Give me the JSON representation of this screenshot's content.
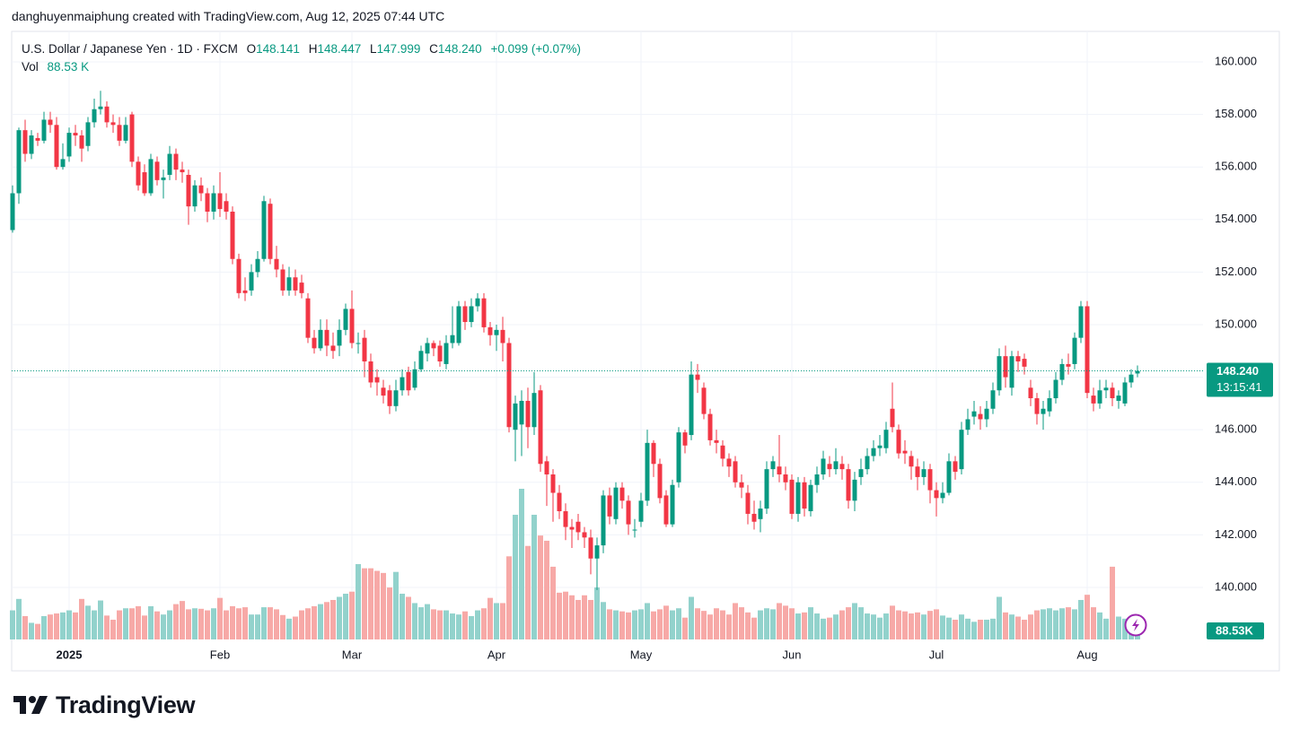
{
  "header": {
    "caption": "danghuyenmaiphung created with TradingView.com, Aug 12, 2025 07:44 UTC"
  },
  "legend": {
    "symbol": "U.S. Dollar / Japanese Yen · 1D · FXCM",
    "open_label": "O",
    "open": "148.141",
    "high_label": "H",
    "high": "148.447",
    "low_label": "L",
    "low": "147.999",
    "close_label": "C",
    "close": "148.240",
    "change": "+0.099 (+0.07%)",
    "volume_label": "Vol",
    "volume": "88.53 K"
  },
  "chart_data": {
    "type": "candlestick",
    "categories": [
      null,
      null,
      null,
      null,
      null,
      null,
      null,
      null,
      null,
      "2025",
      null,
      null,
      null,
      null,
      null,
      null,
      null,
      null,
      null,
      null,
      null,
      null,
      null,
      null,
      null,
      null,
      null,
      null,
      null,
      null,
      null,
      null,
      null,
      "Feb",
      null,
      null,
      null,
      null,
      null,
      null,
      null,
      null,
      null,
      null,
      null,
      null,
      null,
      null,
      null,
      null,
      null,
      null,
      null,
      null,
      "Mar",
      null,
      null,
      null,
      null,
      null,
      null,
      null,
      null,
      null,
      null,
      null,
      null,
      null,
      null,
      null,
      null,
      null,
      null,
      null,
      null,
      null,
      null,
      "Apr",
      null,
      null,
      null,
      null,
      null,
      null,
      null,
      null,
      null,
      null,
      null,
      null,
      null,
      null,
      null,
      null,
      null,
      null,
      null,
      null,
      null,
      null,
      "May",
      null,
      null,
      null,
      null,
      null,
      null,
      null,
      null,
      null,
      null,
      null,
      null,
      null,
      null,
      null,
      null,
      null,
      null,
      null,
      null,
      null,
      null,
      null,
      "Jun",
      null,
      null,
      null,
      null,
      null,
      null,
      null,
      null,
      null,
      null,
      null,
      null,
      null,
      null,
      null,
      null,
      null,
      null,
      null,
      null,
      null,
      null,
      "Jul",
      null,
      null,
      null,
      null,
      null,
      null,
      null,
      null,
      null,
      null,
      null,
      null,
      null,
      null,
      null,
      null,
      null,
      null,
      null,
      null,
      null,
      null,
      null,
      "Aug",
      null,
      null,
      null,
      null,
      null,
      null,
      null,
      null
    ],
    "open": [
      153.6,
      155.0,
      157.4,
      156.5,
      157.1,
      157.0,
      157.8,
      157.6,
      156.0,
      156.4,
      157.3,
      157.2,
      156.8,
      157.7,
      158.2,
      158.3,
      157.7,
      157.6,
      157.0,
      158.0,
      156.2,
      155.8,
      155.0,
      156.2,
      155.5,
      155.7,
      156.5,
      155.9,
      155.7,
      154.5,
      155.3,
      155.0,
      154.3,
      155.0,
      154.7,
      154.3,
      152.5,
      151.3,
      151.3,
      152.0,
      152.5,
      154.6,
      152.5,
      152.1,
      151.3,
      151.8,
      151.6,
      151.0,
      149.5,
      149.1,
      149.8,
      149.2,
      149.2,
      149.8,
      150.6,
      149.3,
      149.5,
      148.6,
      148.0,
      147.6,
      147.5,
      146.9,
      147.5,
      148.2,
      147.6,
      148.3,
      148.9,
      149.3,
      149.2,
      148.5,
      149.3,
      149.3,
      150.7,
      150.1,
      150.7,
      151.0,
      149.9,
      149.6,
      149.8,
      149.3,
      146.0,
      146.2,
      147.1,
      146.1,
      147.5,
      144.8,
      144.3,
      143.6,
      142.9,
      142.3,
      142.5,
      142.1,
      141.9,
      141.1,
      141.6,
      143.5,
      142.6,
      143.8,
      143.3,
      142.2,
      142.5,
      143.3,
      145.5,
      144.7,
      143.5,
      142.4,
      144.0,
      145.9,
      145.8,
      148.1,
      147.6,
      146.6,
      145.6,
      145.4,
      144.9,
      144.8,
      144.0,
      143.6,
      142.8,
      142.6,
      143.0,
      144.5,
      144.6,
      144.3,
      144.1,
      142.8,
      144.0,
      142.9,
      143.9,
      144.3,
      144.7,
      144.5,
      144.7,
      144.5,
      143.3,
      144.2,
      144.5,
      145.0,
      145.3,
      145.3,
      146.8,
      146.0,
      145.2,
      145.0,
      144.6,
      144.2,
      144.5,
      143.7,
      143.4,
      143.6,
      144.8,
      144.5,
      146.0,
      146.5,
      146.6,
      146.4,
      146.8,
      147.5,
      148.8,
      147.6,
      148.8,
      148.7,
      147.6,
      147.2,
      146.6,
      146.7,
      147.2,
      147.9,
      148.5,
      148.5,
      149.5,
      150.7,
      147.3,
      147.0,
      147.5,
      147.6,
      147.1,
      147.0,
      147.8,
      148.141
    ],
    "high": [
      155.3,
      157.5,
      157.8,
      157.4,
      157.3,
      158.1,
      158.1,
      157.9,
      156.9,
      157.5,
      157.6,
      157.4,
      157.9,
      158.6,
      158.9,
      158.5,
      158.0,
      157.9,
      157.9,
      158.1,
      156.4,
      156.1,
      156.5,
      156.4,
      155.9,
      156.8,
      156.7,
      156.2,
      155.9,
      155.5,
      155.6,
      155.2,
      155.3,
      155.8,
      155.0,
      154.5,
      152.7,
      151.8,
      152.3,
      152.8,
      154.9,
      154.8,
      153.0,
      152.3,
      152.2,
      152.1,
      151.9,
      151.2,
      149.8,
      150.2,
      150.2,
      149.7,
      150.2,
      150.8,
      151.3,
      149.7,
      149.8,
      148.9,
      148.3,
      147.9,
      147.7,
      147.9,
      148.3,
      148.4,
      148.6,
      149.2,
      149.5,
      149.4,
      149.4,
      149.6,
      150.7,
      150.9,
      150.9,
      151.0,
      151.2,
      151.2,
      150.1,
      150.0,
      150.3,
      149.5,
      147.3,
      147.5,
      147.6,
      148.2,
      147.7,
      145.0,
      144.5,
      143.9,
      143.2,
      142.6,
      142.8,
      142.3,
      142.2,
      141.9,
      143.7,
      143.8,
      144.0,
      144.0,
      143.5,
      142.6,
      143.6,
      146.0,
      145.6,
      144.9,
      143.7,
      144.1,
      146.1,
      146.0,
      148.6,
      148.5,
      147.8,
      146.8,
      146.0,
      145.6,
      145.1,
      145.0,
      144.3,
      143.9,
      143.3,
      143.3,
      144.8,
      145.0,
      145.8,
      144.6,
      144.3,
      144.2,
      144.2,
      144.1,
      144.6,
      145.2,
      145.0,
      145.3,
      145.0,
      144.7,
      144.4,
      144.9,
      145.3,
      145.6,
      145.8,
      146.3,
      147.8,
      146.2,
      145.6,
      145.2,
      144.9,
      144.8,
      144.7,
      144.0,
      144.0,
      145.1,
      145.0,
      146.3,
      146.8,
      147.1,
      146.9,
      147.1,
      147.8,
      149.1,
      149.2,
      149.0,
      149.0,
      148.9,
      147.9,
      147.4,
      147.1,
      147.5,
      148.2,
      148.7,
      148.9,
      149.7,
      150.9,
      150.9,
      147.6,
      147.9,
      147.9,
      147.8,
      147.5,
      148.0,
      148.3,
      148.447
    ],
    "low": [
      153.5,
      154.6,
      156.2,
      156.3,
      156.8,
      156.9,
      157.3,
      155.9,
      155.9,
      156.2,
      156.8,
      156.2,
      156.6,
      157.5,
      158.0,
      157.5,
      157.3,
      156.8,
      156.9,
      156.0,
      155.1,
      154.9,
      154.9,
      155.3,
      154.8,
      155.5,
      155.5,
      155.4,
      153.8,
      154.3,
      154.7,
      153.9,
      154.0,
      154.1,
      154.0,
      152.3,
      151.0,
      150.9,
      151.1,
      151.8,
      152.4,
      152.3,
      151.8,
      151.1,
      151.1,
      151.1,
      151.0,
      149.3,
      148.9,
      149.0,
      148.8,
      148.7,
      148.8,
      149.6,
      149.1,
      148.9,
      148.0,
      147.6,
      147.3,
      147.0,
      146.6,
      146.7,
      147.3,
      147.3,
      147.5,
      148.2,
      148.6,
      148.8,
      148.4,
      148.3,
      149.1,
      149.2,
      149.8,
      149.9,
      150.5,
      149.7,
      149.2,
      149.0,
      148.6,
      145.9,
      144.8,
      145.0,
      145.3,
      145.8,
      144.4,
      143.1,
      142.5,
      142.6,
      141.8,
      141.5,
      141.8,
      141.5,
      140.5,
      139.9,
      141.3,
      142.4,
      142.4,
      143.0,
      142.0,
      141.9,
      142.3,
      143.1,
      144.2,
      143.2,
      142.3,
      142.3,
      143.8,
      145.1,
      145.6,
      147.4,
      146.4,
      145.4,
      145.1,
      144.6,
      144.2,
      143.8,
      143.4,
      142.4,
      142.2,
      142.1,
      142.8,
      144.2,
      144.0,
      143.7,
      142.6,
      142.5,
      142.7,
      142.7,
      143.6,
      144.1,
      144.2,
      144.3,
      144.1,
      143.0,
      142.9,
      143.9,
      144.3,
      144.8,
      145.0,
      145.1,
      145.9,
      144.9,
      144.7,
      144.1,
      143.7,
      143.9,
      143.2,
      142.7,
      143.2,
      143.5,
      144.1,
      144.3,
      145.8,
      146.2,
      146.0,
      146.1,
      146.6,
      147.3,
      147.6,
      147.3,
      148.2,
      148.1,
      146.9,
      146.2,
      146.0,
      146.5,
      147.0,
      147.7,
      148.1,
      148.3,
      149.3,
      147.2,
      146.7,
      146.8,
      147.2,
      146.9,
      146.8,
      146.9,
      147.6,
      147.999
    ],
    "close": [
      155.0,
      157.4,
      156.5,
      157.2,
      157.0,
      157.8,
      157.6,
      156.0,
      156.3,
      157.3,
      157.2,
      156.7,
      157.7,
      158.2,
      158.3,
      157.7,
      157.6,
      157.0,
      157.6,
      156.2,
      155.3,
      155.0,
      156.3,
      155.5,
      155.6,
      156.5,
      155.9,
      155.8,
      154.5,
      155.3,
      155.0,
      154.3,
      155.0,
      154.4,
      154.3,
      152.5,
      151.2,
      151.2,
      152.0,
      152.5,
      154.7,
      152.5,
      152.1,
      151.3,
      151.8,
      151.3,
      151.2,
      149.5,
      149.1,
      149.8,
      149.2,
      149.0,
      149.8,
      150.6,
      149.3,
      149.3,
      148.6,
      147.8,
      147.8,
      147.3,
      146.9,
      147.5,
      148.0,
      147.5,
      148.3,
      149.0,
      149.3,
      149.1,
      148.6,
      149.3,
      149.6,
      150.7,
      150.1,
      150.7,
      151.0,
      149.9,
      149.6,
      149.8,
      149.3,
      146.1,
      147.0,
      147.1,
      146.1,
      147.4,
      144.7,
      144.3,
      143.6,
      142.9,
      142.3,
      142.2,
      142.1,
      141.9,
      141.1,
      141.6,
      143.5,
      142.7,
      143.8,
      143.3,
      142.4,
      142.2,
      143.3,
      145.5,
      144.7,
      143.4,
      142.4,
      143.9,
      145.9,
      145.4,
      148.1,
      147.9,
      146.6,
      145.6,
      145.5,
      144.9,
      144.6,
      144.0,
      143.8,
      142.8,
      142.5,
      143.0,
      144.5,
      144.8,
      144.3,
      144.0,
      142.8,
      144.0,
      143.0,
      143.9,
      144.3,
      144.9,
      144.5,
      144.8,
      144.5,
      143.3,
      144.1,
      144.5,
      145.0,
      145.3,
      145.4,
      146.0,
      146.1,
      145.1,
      145.1,
      144.6,
      144.2,
      144.5,
      143.7,
      143.4,
      143.6,
      144.8,
      144.4,
      146.0,
      146.4,
      146.7,
      146.4,
      146.8,
      147.5,
      148.8,
      148.0,
      148.8,
      148.6,
      148.4,
      147.2,
      146.6,
      146.8,
      147.2,
      147.9,
      148.5,
      148.4,
      149.5,
      150.7,
      147.4,
      147.0,
      147.5,
      147.6,
      147.2,
      147.3,
      147.8,
      148.1,
      148.24
    ],
    "volume": [
      560,
      780,
      450,
      320,
      300,
      450,
      480,
      500,
      520,
      560,
      520,
      780,
      650,
      560,
      750,
      460,
      380,
      560,
      600,
      600,
      640,
      460,
      640,
      540,
      480,
      560,
      680,
      740,
      580,
      600,
      590,
      560,
      600,
      800,
      560,
      640,
      600,
      620,
      480,
      480,
      620,
      620,
      580,
      470,
      400,
      440,
      560,
      600,
      640,
      680,
      720,
      760,
      820,
      880,
      920,
      1450,
      1370,
      1370,
      1320,
      1280,
      1000,
      1300,
      880,
      820,
      700,
      620,
      680,
      580,
      560,
      560,
      500,
      480,
      540,
      450,
      560,
      600,
      800,
      700,
      700,
      1600,
      2400,
      2900,
      1800,
      2400,
      2000,
      1900,
      1400,
      900,
      920,
      850,
      760,
      850,
      760,
      1000,
      720,
      580,
      560,
      540,
      520,
      560,
      580,
      700,
      540,
      580,
      650,
      560,
      600,
      420,
      820,
      600,
      550,
      480,
      600,
      560,
      480,
      700,
      620,
      520,
      420,
      560,
      600,
      580,
      700,
      650,
      600,
      500,
      520,
      620,
      500,
      400,
      420,
      480,
      560,
      620,
      700,
      620,
      500,
      480,
      420,
      500,
      650,
      560,
      540,
      500,
      520,
      480,
      550,
      580,
      460,
      420,
      380,
      480,
      400,
      340,
      380,
      380,
      400,
      820,
      520,
      480,
      440,
      380,
      480,
      560,
      580,
      600,
      560,
      600,
      620,
      580,
      760,
      860,
      620,
      520,
      400,
      1400,
      440,
      400,
      380,
      88.53
    ],
    "up_color": "#089981",
    "down_color": "#f23645",
    "volume_up_color": "#92d2cc",
    "volume_down_color": "#f7a9a7",
    "ylim": [
      138.02,
      161.16
    ],
    "yticks": [
      {
        "value": 140,
        "label": "140.000"
      },
      {
        "value": 142,
        "label": "142.000"
      },
      {
        "value": 144,
        "label": "144.000"
      },
      {
        "value": 146,
        "label": "146.000"
      },
      {
        "value": 148,
        "label": "148.000"
      },
      {
        "value": 150,
        "label": "150.000"
      },
      {
        "value": 152,
        "label": "152.000"
      },
      {
        "value": 154,
        "label": "154.000"
      },
      {
        "value": 156,
        "label": "156.000"
      },
      {
        "value": 158,
        "label": "158.000"
      },
      {
        "value": 160,
        "label": "160.000"
      }
    ],
    "grid": true,
    "last_price_label": "148.240",
    "countdown": "13:15:41",
    "volume_tag": "88.53K"
  },
  "footer": {
    "brand": "TradingView"
  }
}
